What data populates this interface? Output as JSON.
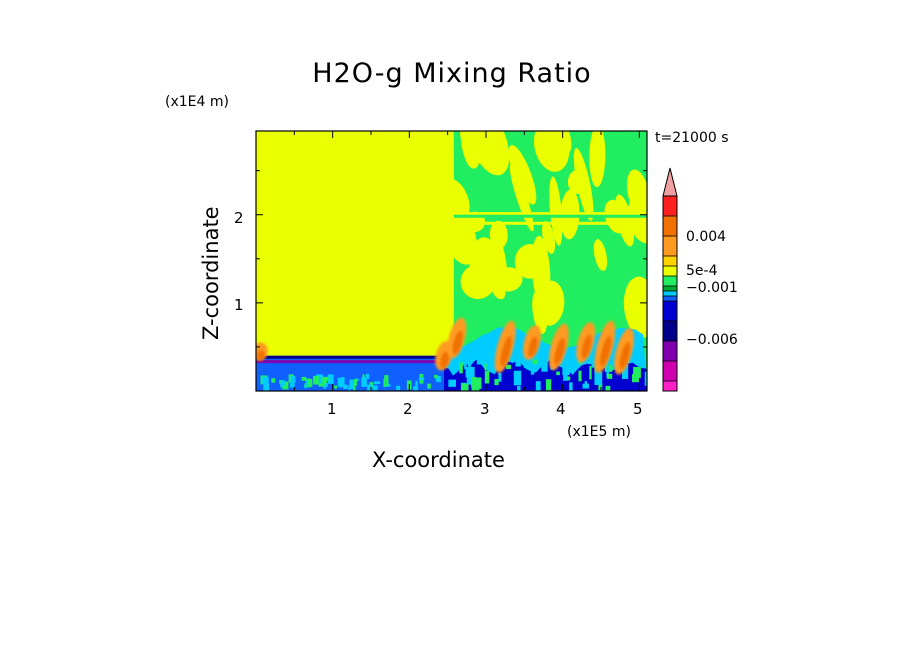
{
  "chart_data": {
    "type": "heatmap",
    "title": "H2O-g Mixing Ratio",
    "xlabel": "X-coordinate",
    "ylabel": "Z-coordinate",
    "x_unit": "(x1E5 m)",
    "y_unit": "(x1E4 m)",
    "time_label": "t=21000 s",
    "xlim": [
      0,
      5.1
    ],
    "ylim": [
      0,
      2.95
    ],
    "x_ticks": [
      1,
      2,
      3,
      4,
      5
    ],
    "y_ticks": [
      1,
      2
    ],
    "x_tick_labels": [
      "1",
      "2",
      "3",
      "4",
      "5"
    ],
    "y_tick_labels": [
      "1",
      "2"
    ],
    "colorbar": {
      "tick_labels": [
        "0.004",
        "5e-4",
        "−0.001",
        "−0.006"
      ],
      "levels_top_to_bottom": [
        {
          "color": "#f0a0a0"
        },
        {
          "color": "#ff2020"
        },
        {
          "color": "#f07000"
        },
        {
          "color": "#ff9a20"
        },
        {
          "color": "#ffd200"
        },
        {
          "color": "#eaff00"
        },
        {
          "color": "#20ee60"
        },
        {
          "color": "#00aa30"
        },
        {
          "color": "#00ccff"
        },
        {
          "color": "#1060ff"
        },
        {
          "color": "#0000d0"
        },
        {
          "color": "#00008a"
        },
        {
          "color": "#8000b0"
        },
        {
          "color": "#d000b0"
        },
        {
          "color": "#ff20c8"
        }
      ]
    },
    "regions": [
      {
        "name": "background-yellow",
        "color": "#eaff00"
      },
      {
        "name": "upper-right-green",
        "color": "#20ee60"
      },
      {
        "name": "lower-layer-blue",
        "color": "#1060ff"
      },
      {
        "name": "surface-dark-blue",
        "color": "#0000d0"
      },
      {
        "name": "cyan-band",
        "color": "#00ccff"
      },
      {
        "name": "orange-plumes",
        "color": "#ff9a20"
      }
    ]
  }
}
